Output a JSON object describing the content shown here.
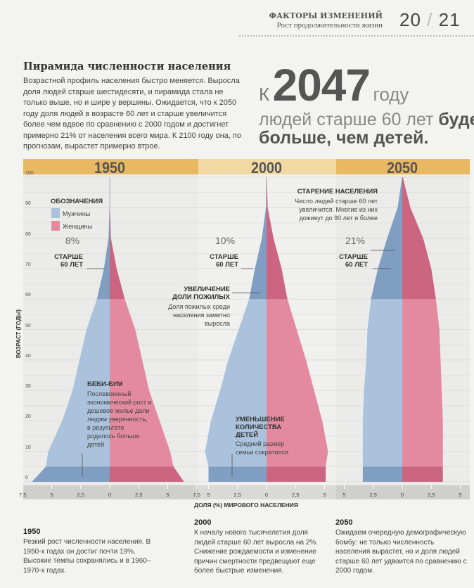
{
  "header": {
    "section": "ФАКТОРЫ ИЗМЕНЕНИЙ",
    "subsection": "Рост продолжительности жизни",
    "page_left": "20",
    "page_sep": "/",
    "page_right": "21"
  },
  "article": {
    "title": "Пирамида численности населения",
    "intro": "Возрастной профиль населения быстро меняется. Выросла доля людей старше шестидесяти, и пирамида стала не только выше, но и шире у вершины. Ожидается, что к 2050 году доля людей в возрасте 60 лет и старше увеличится более чем вдвое по сравнению с 2000 годом и достигнет примерно 21% от населения всего мира. К 2100 году она, по прогнозам, вырастет примерно втрое.",
    "headline_k": "К",
    "headline_year": "2047",
    "headline_godu": "году",
    "headline_line2_light": "людей старше 60 лет ",
    "headline_line2_bold": "будет",
    "headline_line3": "больше, чем детей."
  },
  "colors": {
    "male_light": "#aac2dc",
    "male_dark": "#7f9ec2",
    "female_light": "#e48aa0",
    "female_dark": "#cc6581",
    "band": "#e9b862",
    "band_mid": "#f2d9a4",
    "chart_bg": "#ebebea"
  },
  "legend": {
    "title": "ОБОЗНАЧЕНИЯ",
    "male": "Мужчины",
    "female": "Женщины"
  },
  "annotations": {
    "p1950_pct": "8%",
    "p2000_pct": "10%",
    "p2050_pct": "21%",
    "over60": "СТАРШЕ",
    "over60b": "60 ЛЕТ",
    "aging_h": "СТАРЕНИЕ НАСЕЛЕНИЯ",
    "aging_t": "Число людей старше 60 лет увеличится. Многие из них доживут до 90 лет и более",
    "incr_h1": "УВЕЛИЧЕНИЕ",
    "incr_h2": "ДОЛИ ПОЖИЛЫХ",
    "incr_t": "Доля пожилых среди населения заметно выросла",
    "baby_h": "БЕБИ-БУМ",
    "baby_t": "Послевоенный экономический рост и дешевое жилье дали людям уверенность, в результате родилось больше детей",
    "fewer_h1": "УМЕНЬШЕНИЕ",
    "fewer_h2": "КОЛИЧЕСТВА",
    "fewer_h3": "ДЕТЕЙ",
    "fewer_t": "Средний размер семьи сократился"
  },
  "chart_data": {
    "type": "population-pyramid",
    "ylabel": "ВОЗРАСТ (ГОДЫ)",
    "xlabel": "ДОЛЯ (%) МИРОВОГО НАСЕЛЕНИЯ",
    "ylim": [
      0,
      100
    ],
    "yticks": [
      "0",
      "10",
      "20",
      "30",
      "40",
      "50",
      "60",
      "70",
      "80",
      "90",
      "100"
    ],
    "ages": [
      0,
      5,
      10,
      20,
      30,
      40,
      50,
      60,
      70,
      80,
      90,
      100
    ],
    "panels": [
      {
        "year": "1950",
        "xticks": [
          "7,5",
          "5",
          "2,5",
          "0",
          "2,5",
          "5",
          "7,5"
        ],
        "xlim": 7.5,
        "male": [
          6.7,
          5.5,
          5.3,
          4.1,
          3.2,
          2.6,
          2.0,
          1.1,
          0.5,
          0.1,
          0.02,
          0.02
        ],
        "female": [
          6.4,
          5.5,
          5.2,
          4.3,
          3.4,
          2.8,
          2.2,
          1.3,
          0.6,
          0.1,
          0.02,
          0.02
        ]
      },
      {
        "year": "2000",
        "xticks": [
          "5",
          "2,5",
          "0",
          "2,5",
          "5"
        ],
        "xlim": 5.5,
        "male": [
          5.0,
          5.0,
          5.3,
          4.8,
          4.0,
          3.3,
          2.4,
          1.5,
          1.0,
          0.4,
          0.05,
          0.02
        ],
        "female": [
          5.1,
          5.1,
          5.3,
          4.8,
          4.1,
          3.4,
          2.6,
          1.8,
          1.3,
          0.6,
          0.1,
          0.02
        ]
      },
      {
        "year": "2050",
        "xticks": [
          "5",
          "2,5",
          "0",
          "2,5",
          "5"
        ],
        "xlim": 5.5,
        "male": [
          3.4,
          3.4,
          3.4,
          3.4,
          3.3,
          3.1,
          3.0,
          2.7,
          2.1,
          1.3,
          0.4,
          0.02
        ],
        "female": [
          3.5,
          3.5,
          3.5,
          3.5,
          3.4,
          3.3,
          3.2,
          2.9,
          2.5,
          1.8,
          0.7,
          0.05
        ]
      }
    ]
  },
  "notes": [
    {
      "year": "1950",
      "text": "Резкий рост численности населения. В 1950-х годах он достиг почти 19%. Высокие темпы сохранялись и в 1960–1970-х годах."
    },
    {
      "year": "2000",
      "text": "К началу нового тысячелетия доля людей старше 60 лет выросла на 2%. Снижение рождаемости и изменение причин смертности предвещают еще более быстрые изменения."
    },
    {
      "year": "2050",
      "text": "Ожидаем очередную демографическую бомбу: не только численность населения вырастет, но и доля людей старше 60 лет удвоится по сравнению с 2000 годом."
    }
  ]
}
